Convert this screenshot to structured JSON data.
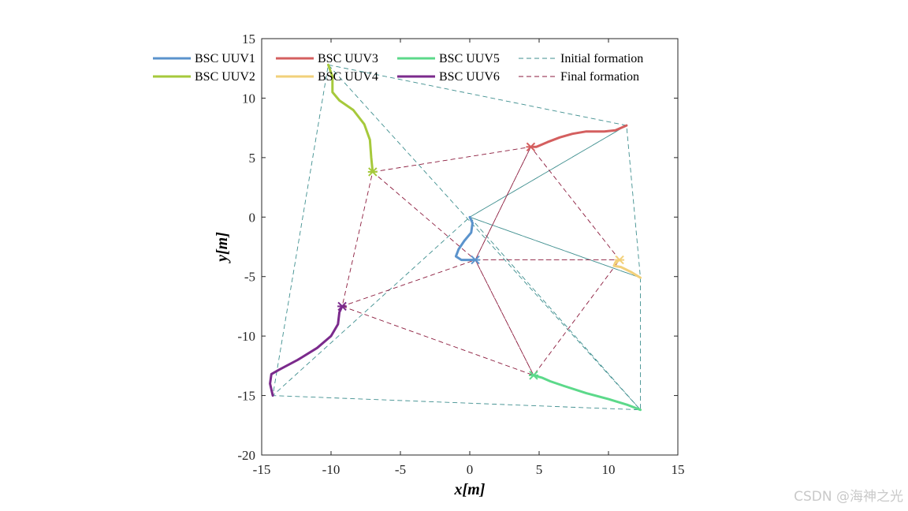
{
  "chart_data": {
    "type": "line",
    "xlabel": "x[m]",
    "ylabel": "y[m]",
    "xlim": [
      -15,
      15
    ],
    "ylim": [
      -20,
      15
    ],
    "xticks": [
      -15,
      -10,
      -5,
      0,
      5,
      10,
      15
    ],
    "yticks": [
      15,
      10,
      5,
      0,
      -5,
      -10,
      -15,
      -20
    ],
    "legend_position": "top",
    "series": [
      {
        "name": "BSC UUV1",
        "color": "#5b93cc",
        "points": [
          [
            0,
            0
          ],
          [
            0.2,
            -0.5
          ],
          [
            0.1,
            -1.3
          ],
          [
            -0.4,
            -2.0
          ],
          [
            -0.8,
            -2.7
          ],
          [
            -1.0,
            -3.3
          ],
          [
            -0.6,
            -3.6
          ],
          [
            0,
            -3.6
          ],
          [
            0.4,
            -3.6
          ]
        ]
      },
      {
        "name": "BSC UUV2",
        "color": "#a6c93b",
        "points": [
          [
            -10.2,
            12.8
          ],
          [
            -9.9,
            11.8
          ],
          [
            -9.9,
            10.5
          ],
          [
            -9.4,
            9.8
          ],
          [
            -8.4,
            9.0
          ],
          [
            -7.6,
            7.8
          ],
          [
            -7.2,
            6.5
          ],
          [
            -7.1,
            5.0
          ],
          [
            -7.0,
            3.8
          ]
        ]
      },
      {
        "name": "BSC UUV3",
        "color": "#d45f5f",
        "points": [
          [
            11.3,
            7.7
          ],
          [
            10.5,
            7.3
          ],
          [
            9.7,
            7.2
          ],
          [
            8.4,
            7.2
          ],
          [
            7.4,
            7.0
          ],
          [
            6.5,
            6.7
          ],
          [
            5.6,
            6.3
          ],
          [
            4.8,
            5.9
          ],
          [
            4.4,
            5.9
          ]
        ]
      },
      {
        "name": "BSC UUV4",
        "color": "#f2d07a",
        "points": [
          [
            12.3,
            -5.1
          ],
          [
            11.6,
            -4.6
          ],
          [
            10.9,
            -4.2
          ],
          [
            10.4,
            -4.1
          ],
          [
            10.5,
            -3.8
          ],
          [
            10.8,
            -3.6
          ]
        ]
      },
      {
        "name": "BSC UUV5",
        "color": "#5cd98a",
        "points": [
          [
            12.3,
            -16.2
          ],
          [
            11.4,
            -15.8
          ],
          [
            10.0,
            -15.3
          ],
          [
            8.4,
            -14.8
          ],
          [
            6.8,
            -14.2
          ],
          [
            5.8,
            -13.8
          ],
          [
            5.2,
            -13.5
          ],
          [
            4.6,
            -13.3
          ]
        ]
      },
      {
        "name": "BSC UUV6",
        "color": "#7b2a8c",
        "points": [
          [
            -14.2,
            -15.0
          ],
          [
            -14.4,
            -14.0
          ],
          [
            -14.3,
            -13.2
          ],
          [
            -13.7,
            -12.8
          ],
          [
            -12.4,
            -12.0
          ],
          [
            -11.0,
            -11.0
          ],
          [
            -10.0,
            -10.0
          ],
          [
            -9.5,
            -9.0
          ],
          [
            -9.4,
            -8.0
          ],
          [
            -9.2,
            -7.5
          ]
        ]
      },
      {
        "name": "Initial formation",
        "color": "#3f8f8f",
        "style": "dashed",
        "points": [
          [
            -10.2,
            12.8
          ],
          [
            11.3,
            7.7
          ],
          [
            12.3,
            -5.1
          ],
          [
            12.3,
            -16.2
          ],
          [
            -14.2,
            -15.0
          ],
          [
            -10.2,
            12.8
          ],
          [
            12.3,
            -16.2
          ],
          [
            0,
            0
          ],
          [
            12.3,
            -5.1
          ],
          [
            0,
            0
          ],
          [
            11.3,
            7.7
          ],
          [
            0,
            0
          ],
          [
            -14.2,
            -15.0
          ]
        ]
      },
      {
        "name": "Final formation",
        "color": "#8b1a3c",
        "style": "dashed",
        "points": [
          [
            -7.0,
            3.8
          ],
          [
            4.4,
            5.9
          ],
          [
            10.8,
            -3.6
          ],
          [
            4.6,
            -13.3
          ],
          [
            -9.2,
            -7.5
          ],
          [
            -7.0,
            3.8
          ],
          [
            0.4,
            -3.6
          ],
          [
            4.6,
            -13.3
          ],
          [
            0.4,
            -3.6
          ],
          [
            4.4,
            5.9
          ],
          [
            0.4,
            -3.6
          ],
          [
            10.8,
            -3.6
          ],
          [
            0.4,
            -3.6
          ],
          [
            -9.2,
            -7.5
          ]
        ]
      }
    ]
  },
  "watermark": "CSDN @海神之光"
}
